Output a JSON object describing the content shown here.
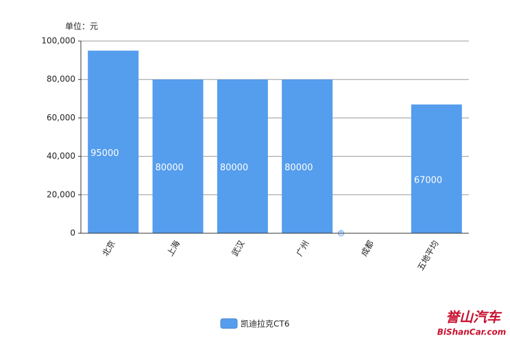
{
  "chart_data": {
    "type": "bar",
    "y_label": "单位：元",
    "categories": [
      "北京",
      "上海",
      "武汉",
      "广州",
      "成都",
      "五地平均"
    ],
    "series": [
      {
        "name": "凯迪拉克CT6",
        "color": "#559ded",
        "values": [
          95000,
          80000,
          80000,
          80000,
          0,
          67000
        ]
      }
    ],
    "ylim": [
      0,
      100000
    ],
    "yticks": [
      0,
      {
        "value": 20000,
        "label": "20,000"
      },
      {
        "value": 40000,
        "label": "40,000"
      },
      {
        "value": 60000,
        "label": "60,000"
      },
      {
        "value": 80000,
        "label": "80,000"
      },
      {
        "value": 100000,
        "label": "100,000"
      }
    ],
    "grid": true
  },
  "watermark": {
    "title": "誉山汽车",
    "site": "BiShanCar.com"
  }
}
